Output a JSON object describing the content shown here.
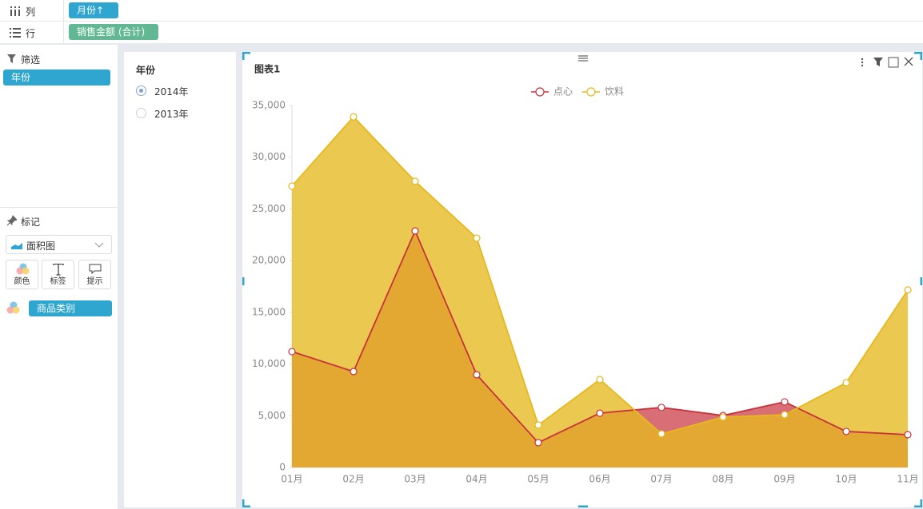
{
  "toolbar": {
    "columns": {
      "label": "列",
      "pill": "月份↑"
    },
    "rows": {
      "label": "行",
      "pill": "销售金额 (合计)"
    }
  },
  "filter": {
    "title": "筛选",
    "pill": "年份"
  },
  "marks": {
    "title": "标记",
    "chart_type": "面积图",
    "buttons": [
      "颜色",
      "标签",
      "提示"
    ],
    "color_pill": "商品类别"
  },
  "year_filter": {
    "title": "年份",
    "options": [
      {
        "label": "2014年",
        "selected": true
      },
      {
        "label": "2013年",
        "selected": false
      }
    ]
  },
  "chart_data": {
    "type": "area",
    "title": "图表1",
    "categories": [
      "01月",
      "02月",
      "03月",
      "04月",
      "05月",
      "06月",
      "07月",
      "08月",
      "09月",
      "10月",
      "11月"
    ],
    "series": [
      {
        "name": "点心",
        "color": "#c8323c",
        "values": [
          11200,
          9270,
          22870,
          8960,
          2400,
          5250,
          5800,
          5020,
          6340,
          3480,
          3170
        ]
      },
      {
        "name": "饮料",
        "color": "#e6b81e",
        "values": [
          27200,
          33900,
          27670,
          22180,
          4100,
          8500,
          3250,
          4870,
          5100,
          8190,
          17160
        ]
      }
    ],
    "ylim": [
      0,
      35000
    ],
    "yticks": [
      0,
      {
        "value": 5000,
        "label": "5,000"
      },
      {
        "value": 10000,
        "label": "10,000"
      },
      {
        "value": 15000,
        "label": "15,000"
      },
      {
        "value": 20000,
        "label": "20,000"
      },
      {
        "value": 25000,
        "label": "25,000"
      },
      {
        "value": 30000,
        "label": "30,000"
      },
      {
        "value": 35000,
        "label": "35,000"
      }
    ],
    "grid": false,
    "legend": "top"
  }
}
